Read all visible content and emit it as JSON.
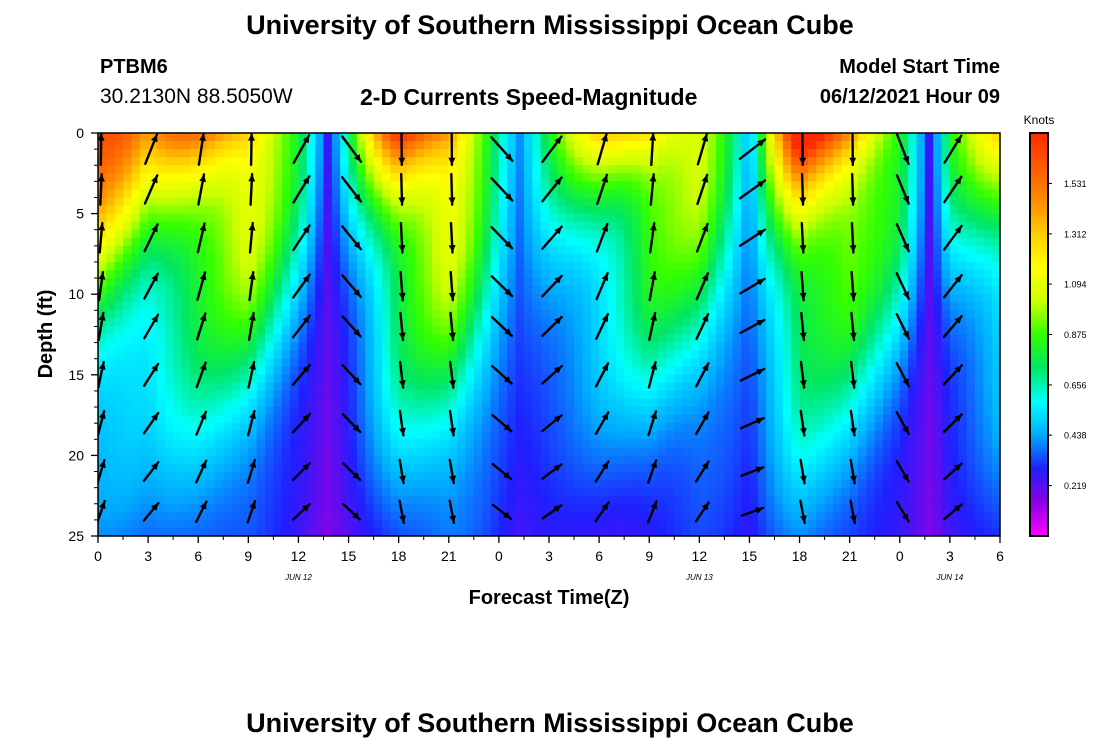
{
  "header": {
    "title": "University of Southern Mississippi Ocean Cube",
    "station_id": "PTBM6",
    "coordinates": "30.2130N  88.5050W",
    "model_start_label": "Model Start Time",
    "model_start_value": "06/12/2021 Hour 09"
  },
  "footer": {
    "title": "University of Southern Mississippi Ocean Cube"
  },
  "chart_data": {
    "type": "heatmap",
    "title": "2-D Currents Speed-Magnitude",
    "xlabel": "Forecast Time(Z)",
    "ylabel": "Depth (ft)",
    "x_ticks": [
      "0",
      "3",
      "6",
      "9",
      "12",
      "15",
      "18",
      "21",
      "0",
      "3",
      "6",
      "9",
      "12",
      "15",
      "18",
      "21",
      "0",
      "3",
      "6"
    ],
    "date_labels": [
      {
        "label": "JUN 12",
        "at_tick": 4
      },
      {
        "label": "JUN 13",
        "at_tick": 12
      },
      {
        "label": "JUN 14",
        "at_tick": 17
      }
    ],
    "xlim_hours": [
      0,
      54
    ],
    "y_ticks": [
      0,
      5,
      10,
      15,
      20,
      25
    ],
    "ylim": [
      0,
      25
    ],
    "y_inverted": true,
    "colorbar": {
      "title": "Knots",
      "ticks": [
        "1.531",
        "1.312",
        "1.094",
        "0.875",
        "0.656",
        "0.438",
        "0.219"
      ],
      "range": [
        0,
        1.75
      ],
      "colors": [
        "#ff00ff",
        "#8c00e6",
        "#1f1fff",
        "#00aaff",
        "#00ffff",
        "#00e664",
        "#33ff00",
        "#ccff00",
        "#ffff00",
        "#ffcc00",
        "#ff8c00",
        "#ff5a00",
        "#ff2a00"
      ]
    },
    "vector_hours": [
      0,
      3,
      6,
      9,
      12,
      15,
      18,
      21,
      24,
      27,
      30,
      33,
      36,
      39,
      42,
      45,
      48,
      51
    ],
    "vector_depths_ft": [
      1,
      3.5,
      6.5,
      9.5,
      12,
      15,
      18,
      21,
      23.5
    ],
    "surface_phase": [
      [
        0,
        1
      ],
      [
        3,
        0.6
      ],
      [
        6,
        0.85
      ],
      [
        9,
        1
      ],
      [
        12,
        0.45
      ],
      [
        15,
        -0.3
      ],
      [
        18,
        -1
      ],
      [
        21,
        -1
      ],
      [
        24,
        -0.2
      ],
      [
        27,
        0.3
      ],
      [
        30,
        0.7
      ],
      [
        33,
        0.95
      ],
      [
        36,
        0.7
      ],
      [
        39,
        0
      ],
      [
        42,
        -1
      ],
      [
        45,
        -1
      ],
      [
        48,
        -0.6
      ],
      [
        51,
        0.4
      ],
      [
        54,
        0.6
      ]
    ]
  }
}
